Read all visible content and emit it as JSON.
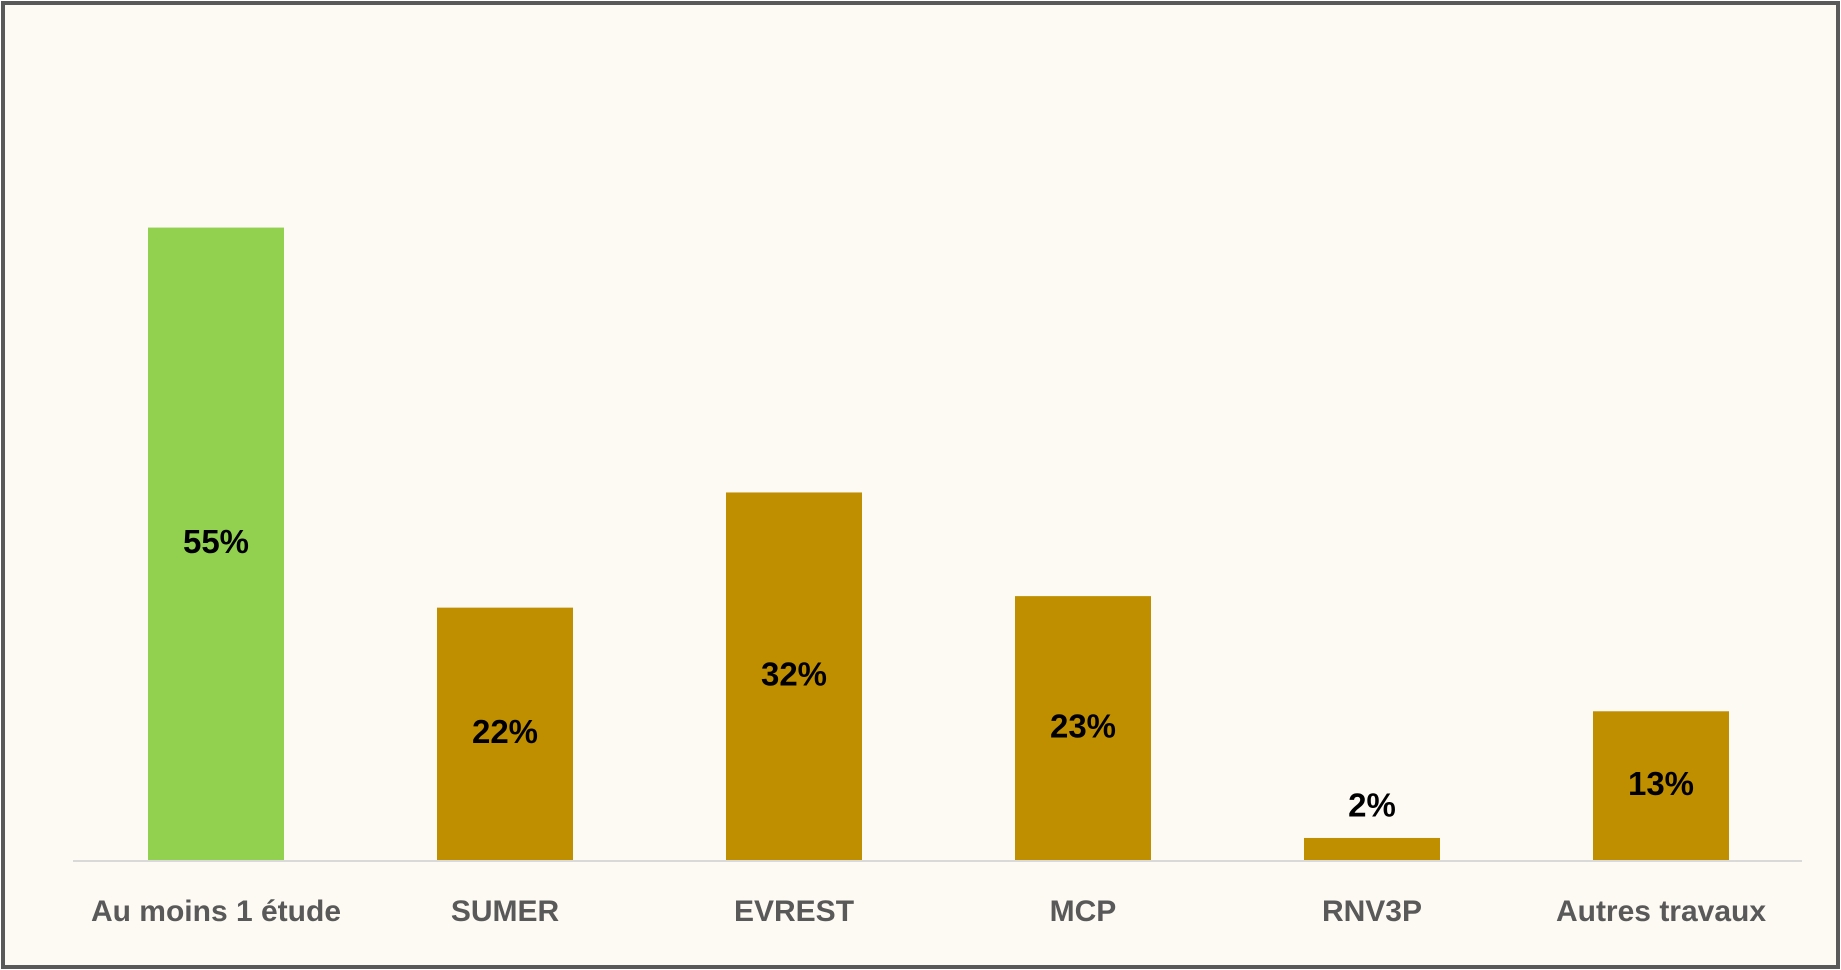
{
  "chart_data": {
    "type": "bar",
    "categories": [
      "Au moins 1 étude",
      "SUMER",
      "EVREST",
      "MCP",
      "RNV3P",
      "Autres travaux"
    ],
    "values": [
      55,
      22,
      32,
      23,
      2,
      13
    ],
    "value_labels": [
      "55%",
      "22%",
      "32%",
      "23%",
      "2%",
      "13%"
    ],
    "colors": [
      "#92d050",
      "#bf8f00",
      "#bf8f00",
      "#bf8f00",
      "#bf8f00",
      "#bf8f00"
    ],
    "ylim": [
      0,
      60
    ]
  }
}
